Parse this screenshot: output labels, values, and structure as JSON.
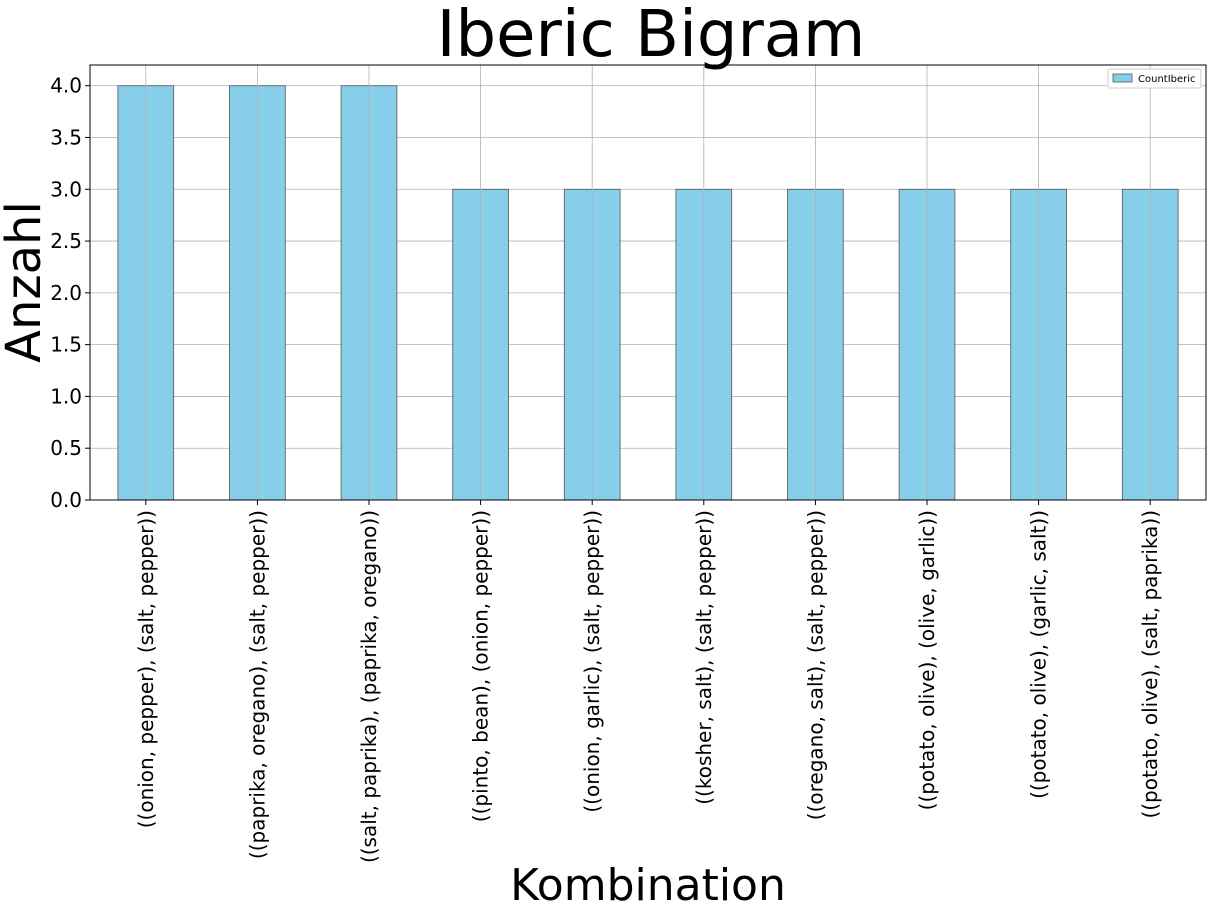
{
  "chart_data": {
    "type": "bar",
    "title": "Iberic Bigram",
    "xlabel": "Kombination",
    "ylabel": "Anzahl",
    "categories": [
      "((onion, pepper), (salt, pepper))",
      "((paprika, oregano), (salt, pepper))",
      "((salt, paprika), (paprika, oregano))",
      "((pinto, bean), (onion, pepper))",
      "((onion, garlic), (salt, pepper))",
      "((kosher, salt), (salt, pepper))",
      "((oregano, salt), (salt, pepper))",
      "((potato, olive), (olive, garlic))",
      "((potato, olive), (garlic, salt))",
      "((potato, olive), (salt, paprika))"
    ],
    "series": [
      {
        "name": "CountIberic",
        "values": [
          4,
          4,
          4,
          3,
          3,
          3,
          3,
          3,
          3,
          3
        ],
        "color": "#87ceeb"
      }
    ],
    "ylim": [
      0,
      4.2
    ],
    "yticks": [
      "0.0",
      "0.5",
      "1.0",
      "1.5",
      "2.0",
      "2.5",
      "3.0",
      "3.5",
      "4.0"
    ],
    "grid": true,
    "legend_position": "top-right"
  }
}
